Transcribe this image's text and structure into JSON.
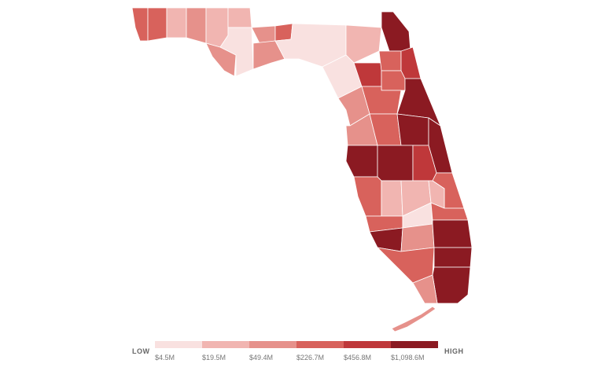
{
  "legend": {
    "low_label": "LOW",
    "high_label": "HIGH",
    "bins": [
      {
        "label": "$4.5M",
        "color": "#f9e1e0"
      },
      {
        "label": "$19.5M",
        "color": "#f1b5b1"
      },
      {
        "label": "$49.4M",
        "color": "#e6918b"
      },
      {
        "label": "$226.7M",
        "color": "#d8625c"
      },
      {
        "label": "$456.8M",
        "color": "#bf383a"
      },
      {
        "label": "$1,098.6M",
        "color": "#8b1a22"
      }
    ]
  }
}
